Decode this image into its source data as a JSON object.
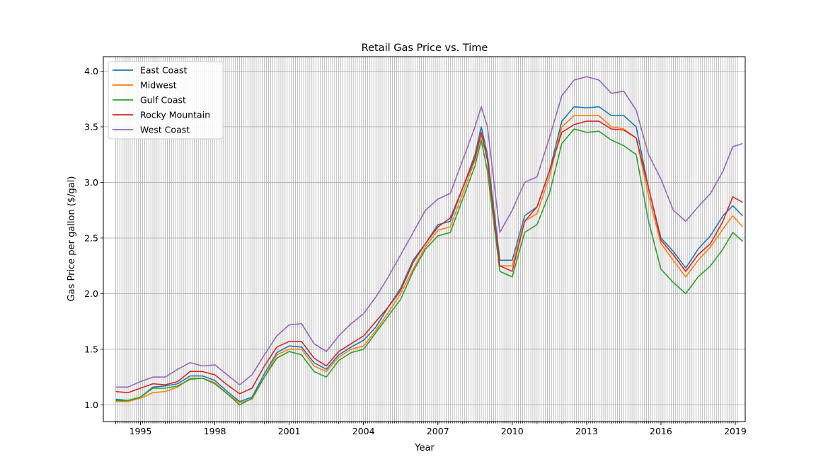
{
  "chart_data": {
    "type": "line",
    "title": "Retail Gas Price vs. Time",
    "xlabel": "Year",
    "ylabel": "Gas Price per gallon ($/gal)",
    "x_ticks": [
      "1995",
      "1998",
      "2001",
      "2004",
      "2007",
      "2010",
      "2013",
      "2016",
      "2019"
    ],
    "y_ticks": [
      "1.0",
      "1.5",
      "2.0",
      "2.5",
      "3.0",
      "3.5",
      "4.0"
    ],
    "xlim": [
      1993.5,
      2019.4
    ],
    "ylim": [
      0.85,
      4.13
    ],
    "grid": true,
    "legend_position": "upper-left",
    "x": [
      1994.0,
      1994.5,
      1995.0,
      1995.5,
      1996.0,
      1996.5,
      1997.0,
      1997.5,
      1998.0,
      1998.5,
      1999.0,
      1999.5,
      2000.0,
      2000.5,
      2001.0,
      2001.5,
      2002.0,
      2002.5,
      2003.0,
      2003.5,
      2004.0,
      2004.5,
      2005.0,
      2005.5,
      2006.0,
      2006.5,
      2007.0,
      2007.5,
      2008.0,
      2008.5,
      2008.75,
      2009.0,
      2009.5,
      2010.0,
      2010.5,
      2011.0,
      2011.5,
      2012.0,
      2012.5,
      2013.0,
      2013.5,
      2014.0,
      2014.5,
      2015.0,
      2015.5,
      2016.0,
      2016.5,
      2017.0,
      2017.5,
      2018.0,
      2018.5,
      2018.9,
      2019.3
    ],
    "series": [
      {
        "name": "East Coast",
        "color": "#1f77b4",
        "values": [
          1.05,
          1.04,
          1.07,
          1.16,
          1.17,
          1.19,
          1.26,
          1.26,
          1.22,
          1.12,
          1.03,
          1.07,
          1.28,
          1.47,
          1.53,
          1.52,
          1.38,
          1.32,
          1.45,
          1.52,
          1.58,
          1.7,
          1.88,
          2.05,
          2.3,
          2.45,
          2.62,
          2.65,
          2.95,
          3.25,
          3.5,
          3.25,
          2.3,
          2.3,
          2.7,
          2.78,
          3.1,
          3.55,
          3.68,
          3.67,
          3.68,
          3.6,
          3.6,
          3.5,
          2.95,
          2.5,
          2.38,
          2.23,
          2.4,
          2.52,
          2.7,
          2.79,
          2.7
        ]
      },
      {
        "name": "Midwest",
        "color": "#ff7f0e",
        "values": [
          1.03,
          1.03,
          1.06,
          1.11,
          1.12,
          1.16,
          1.24,
          1.24,
          1.2,
          1.1,
          1.02,
          1.05,
          1.25,
          1.45,
          1.5,
          1.5,
          1.35,
          1.3,
          1.43,
          1.5,
          1.53,
          1.67,
          1.83,
          2.0,
          2.22,
          2.42,
          2.57,
          2.6,
          2.9,
          3.2,
          3.43,
          3.2,
          2.25,
          2.25,
          2.65,
          2.72,
          3.05,
          3.5,
          3.6,
          3.6,
          3.6,
          3.5,
          3.48,
          3.4,
          2.88,
          2.45,
          2.3,
          2.15,
          2.3,
          2.42,
          2.58,
          2.7,
          2.6
        ]
      },
      {
        "name": "Gulf Coast",
        "color": "#2ca02c",
        "values": [
          1.04,
          1.04,
          1.07,
          1.15,
          1.15,
          1.17,
          1.23,
          1.24,
          1.19,
          1.1,
          1.0,
          1.06,
          1.25,
          1.42,
          1.48,
          1.45,
          1.3,
          1.25,
          1.4,
          1.47,
          1.5,
          1.65,
          1.8,
          1.95,
          2.2,
          2.4,
          2.52,
          2.55,
          2.85,
          3.15,
          3.38,
          3.1,
          2.2,
          2.15,
          2.55,
          2.62,
          2.9,
          3.35,
          3.48,
          3.45,
          3.46,
          3.38,
          3.33,
          3.25,
          2.65,
          2.22,
          2.1,
          2.0,
          2.15,
          2.25,
          2.4,
          2.55,
          2.47
        ]
      },
      {
        "name": "Rocky Mountain",
        "color": "#d62728",
        "values": [
          1.12,
          1.11,
          1.15,
          1.19,
          1.18,
          1.21,
          1.3,
          1.3,
          1.27,
          1.18,
          1.1,
          1.15,
          1.35,
          1.52,
          1.57,
          1.57,
          1.42,
          1.35,
          1.48,
          1.55,
          1.62,
          1.75,
          1.88,
          2.03,
          2.28,
          2.45,
          2.6,
          2.68,
          2.95,
          3.22,
          3.45,
          3.2,
          2.25,
          2.2,
          2.65,
          2.78,
          3.1,
          3.45,
          3.52,
          3.55,
          3.55,
          3.48,
          3.47,
          3.4,
          2.95,
          2.48,
          2.35,
          2.2,
          2.35,
          2.45,
          2.65,
          2.87,
          2.82
        ]
      },
      {
        "name": "West Coast",
        "color": "#9467bd",
        "values": [
          1.16,
          1.16,
          1.21,
          1.25,
          1.25,
          1.32,
          1.38,
          1.35,
          1.36,
          1.27,
          1.18,
          1.27,
          1.45,
          1.62,
          1.72,
          1.73,
          1.55,
          1.48,
          1.62,
          1.73,
          1.82,
          1.97,
          2.15,
          2.35,
          2.55,
          2.75,
          2.85,
          2.9,
          3.2,
          3.5,
          3.68,
          3.5,
          2.55,
          2.75,
          3.0,
          3.05,
          3.4,
          3.78,
          3.92,
          3.95,
          3.92,
          3.8,
          3.82,
          3.65,
          3.25,
          3.03,
          2.75,
          2.65,
          2.78,
          2.9,
          3.1,
          3.32,
          3.35
        ]
      }
    ]
  }
}
